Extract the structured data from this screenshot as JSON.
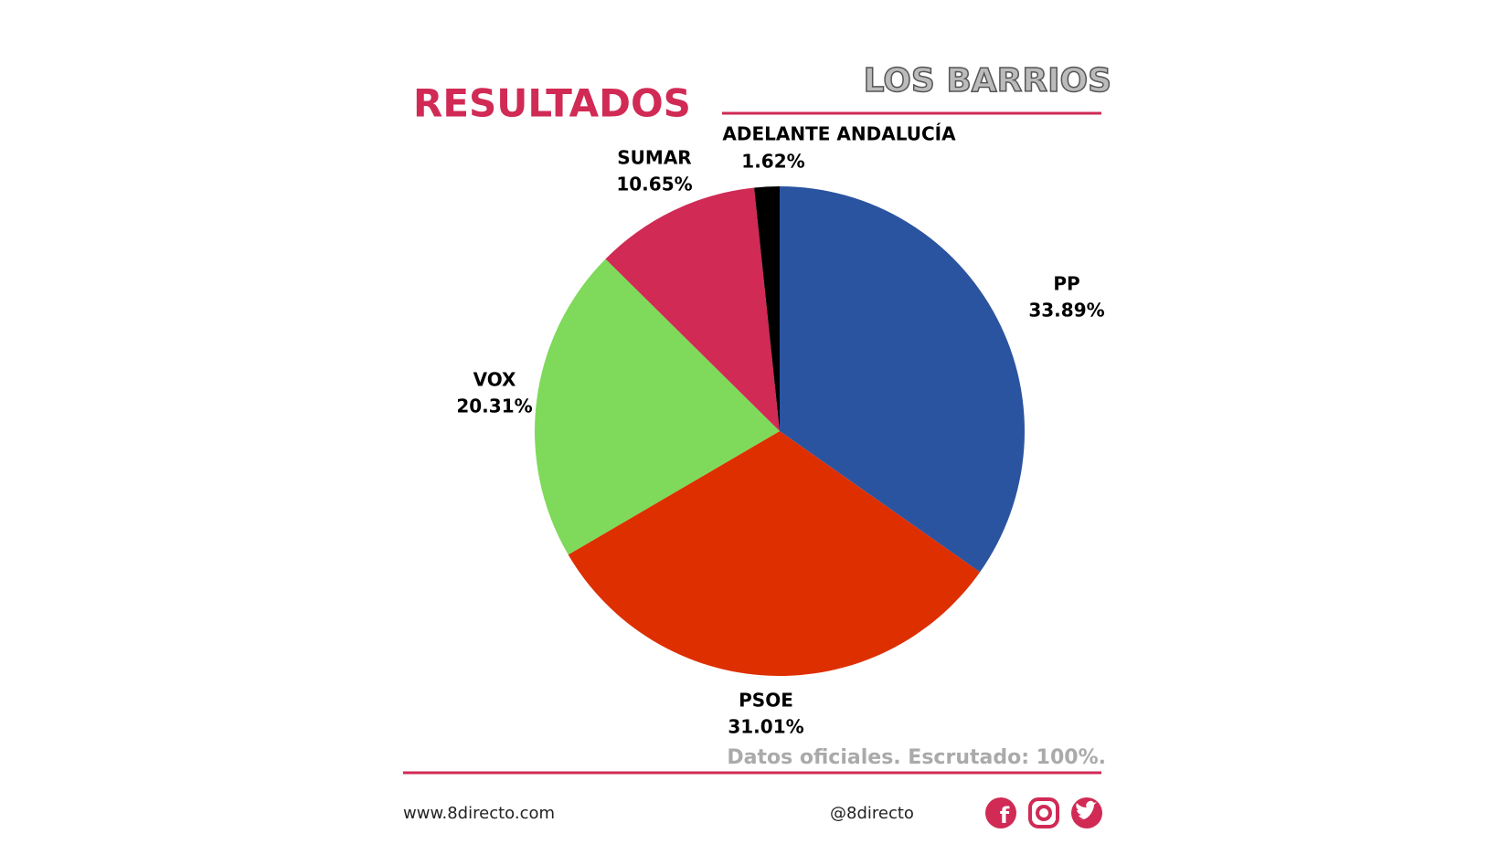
{
  "chart_data": {
    "type": "pie",
    "title": "RESULTADOS",
    "subtitle": "LOS BARRIOS",
    "categories": [
      "PP",
      "PSOE",
      "VOX",
      "SUMAR",
      "ADELANTE ANDALUCÍA"
    ],
    "values": [
      33.89,
      31.01,
      20.31,
      10.65,
      1.62
    ],
    "value_labels": [
      "33.89%",
      "31.01%",
      "20.31%",
      "10.65%",
      "1.62%"
    ],
    "colors": [
      "#2b54a0",
      "#de2f00",
      "#7fd95a",
      "#d02a55",
      "#000000"
    ],
    "note": "Datos oficiales. Escrutado: 100%."
  },
  "footer": {
    "website": "www.8directo.com",
    "handle": "@8directo"
  }
}
